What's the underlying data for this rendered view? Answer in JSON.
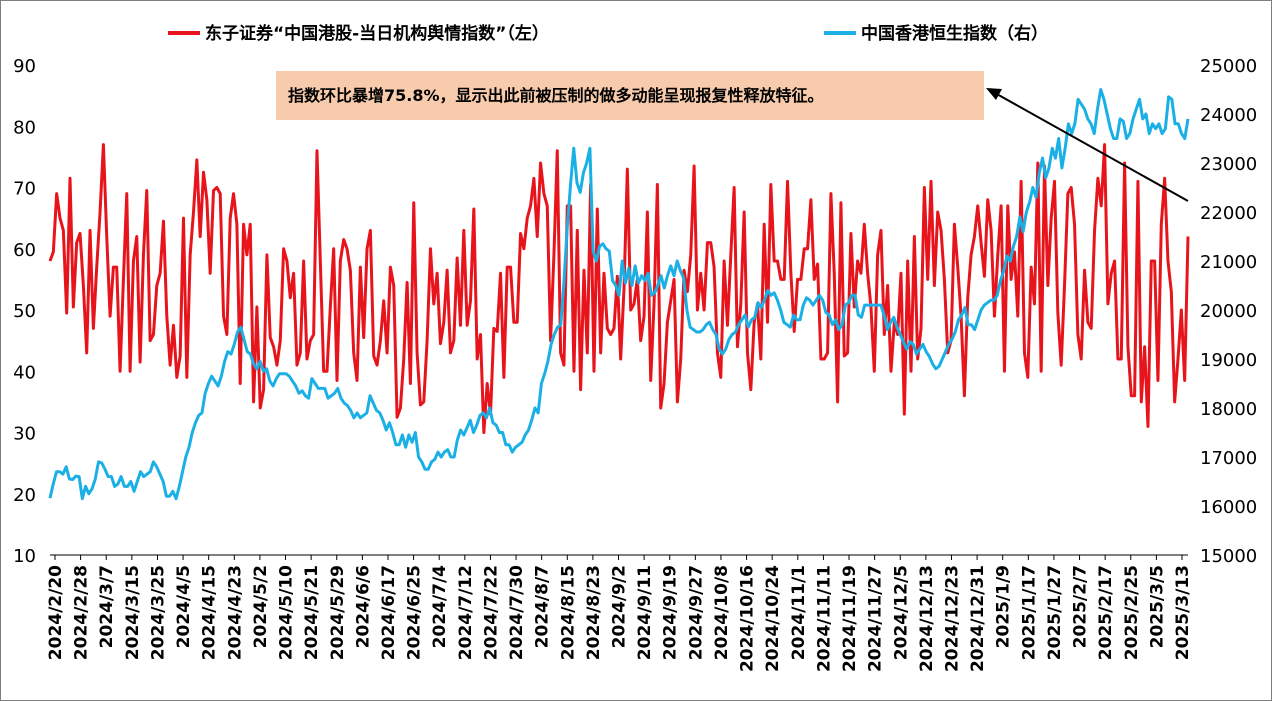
{
  "chart_data": {
    "type": "line",
    "legend": [
      {
        "name": "东子证券“中国港股-当日机构舆情指数”（左）",
        "color": "#e8141c"
      },
      {
        "name": "中国香港恒生指数（右）",
        "color": "#1ab0e6"
      }
    ],
    "legend_placement": "top-center",
    "left_axis": {
      "ylim": [
        10,
        90
      ],
      "ticks": [
        "10",
        "20",
        "30",
        "40",
        "50",
        "60",
        "70",
        "80",
        "90"
      ]
    },
    "right_axis": {
      "ylim": [
        15000,
        25000
      ],
      "ticks": [
        "15000",
        "16000",
        "17000",
        "18000",
        "19000",
        "20000",
        "21000",
        "22000",
        "23000",
        "24000",
        "25000"
      ]
    },
    "x_tick_labels": [
      "2024/2/20",
      "2024/2/28",
      "2024/3/7",
      "2024/3/15",
      "2024/3/25",
      "2024/4/5",
      "2024/4/15",
      "2024/4/23",
      "2024/5/2",
      "2024/5/10",
      "2024/5/21",
      "2024/5/29",
      "2024/6/6",
      "2024/6/17",
      "2024/6/25",
      "2024/7/4",
      "2024/7/12",
      "2024/7/22",
      "2024/7/30",
      "2024/8/7",
      "2024/8/15",
      "2024/8/23",
      "2024/9/2",
      "2024/9/11",
      "2024/9/19",
      "2024/9/27",
      "2024/10/8",
      "2024/10/16",
      "2024/10/24",
      "2024/11/1",
      "2024/11/11",
      "2024/11/19",
      "2024/11/27",
      "2024/12/5",
      "2024/12/13",
      "2024/12/23",
      "2024/12/31",
      "2025/1/9",
      "2025/1/17",
      "2025/1/27",
      "2025/2/7",
      "2025/2/17",
      "2025/2/25",
      "2025/3/5",
      "2025/3/13"
    ],
    "grid": false,
    "annotation": "指数环比暴增75.8%，显示出此前被压制的做多动能呈现报复性释放特征。",
    "annotation_bg": "#f8cbad",
    "series": [
      {
        "name": "东子证券“中国港股-当日机构舆情指数”（左）",
        "axis": "left",
        "color": "#e8141c",
        "values": [
          58,
          59.5,
          69,
          65,
          63,
          49.5,
          71.5,
          50.5,
          61,
          62.5,
          54,
          43,
          63,
          47,
          57,
          66,
          77,
          62,
          49,
          57,
          57,
          40,
          55,
          69,
          40,
          58,
          62,
          41.5,
          59,
          69.5,
          45,
          46,
          54,
          56,
          64.5,
          49,
          41,
          47.5,
          39,
          42.5,
          65,
          39,
          59,
          66,
          74.5,
          62,
          72.5,
          68,
          56,
          69.5,
          70,
          69,
          49,
          46,
          65,
          69,
          64,
          38,
          64,
          59,
          64,
          35,
          50.5,
          34,
          37,
          59,
          45.5,
          44,
          41,
          45,
          60,
          58,
          52,
          56,
          41,
          43,
          58,
          42,
          45,
          46,
          76,
          58,
          40,
          40,
          50.5,
          60,
          38.5,
          58,
          61.5,
          60,
          56.5,
          43,
          38.5,
          57,
          45.5,
          60,
          63,
          42.5,
          41,
          45,
          51.5,
          43,
          57,
          54,
          32.5,
          34,
          42,
          54.5,
          38,
          67.5,
          43,
          34.5,
          35,
          45,
          60,
          51,
          56,
          44.5,
          48,
          56.5,
          43,
          45,
          58.5,
          47.5,
          63,
          47.5,
          51.5,
          66.5,
          42,
          46,
          30,
          38,
          33,
          47,
          46.5,
          56,
          39,
          57,
          57,
          48,
          48,
          62.5,
          60,
          65,
          67,
          71.5,
          62,
          74,
          69,
          67,
          45,
          59,
          76,
          43,
          41,
          67,
          67,
          40,
          63,
          37,
          56.5,
          43,
          70.5,
          40,
          66.5,
          43,
          56,
          47,
          46,
          47,
          55.5,
          42,
          53.5,
          73,
          50,
          51,
          55,
          45,
          49,
          66,
          38.5,
          51,
          70.5,
          34,
          38,
          48,
          51.5,
          55,
          35,
          42,
          56.5,
          53,
          59,
          73.5,
          50,
          56,
          50,
          61,
          61,
          57,
          43,
          39,
          58,
          47.5,
          59,
          70,
          44,
          51,
          66,
          43,
          37,
          48,
          51,
          42,
          64,
          48,
          70.5,
          58,
          58,
          55,
          55,
          71,
          56,
          46.5,
          55,
          55,
          60,
          60,
          68,
          55,
          57.5,
          42,
          42,
          43,
          69,
          56,
          35,
          67.5,
          42.5,
          43,
          62.5,
          50.5,
          58,
          56,
          64,
          56,
          50.5,
          40,
          59,
          63,
          46,
          54,
          40,
          48,
          46,
          56,
          33,
          58,
          40,
          62,
          42,
          47,
          70,
          55,
          71,
          54,
          66,
          63,
          55,
          43,
          45,
          64,
          57,
          49,
          36,
          52,
          59,
          62,
          67,
          61,
          55.5,
          68,
          63,
          49,
          59,
          67,
          40,
          67,
          55,
          59.5,
          49,
          71,
          43,
          39,
          57,
          51,
          74,
          40,
          73.5,
          54,
          65,
          71,
          49.5,
          41,
          54,
          69,
          70,
          64,
          46,
          42,
          56.5,
          48,
          47,
          63,
          71.5,
          67,
          77,
          51,
          56,
          58,
          42,
          42,
          74,
          44,
          36,
          36,
          71,
          35,
          44,
          31,
          58,
          58,
          38.5,
          64,
          71.5,
          58,
          53,
          35,
          42,
          50,
          38.5,
          62
        ]
      },
      {
        "name": "中国香港恒生指数（右）",
        "axis": "right",
        "color": "#1ab0e6",
        "values": [
          16160,
          16450,
          16700,
          16700,
          16650,
          16800,
          16550,
          16540,
          16610,
          16600,
          16150,
          16400,
          16250,
          16350,
          16550,
          16900,
          16880,
          16750,
          16600,
          16600,
          16400,
          16450,
          16600,
          16400,
          16400,
          16500,
          16300,
          16500,
          16700,
          16600,
          16650,
          16700,
          16900,
          16800,
          16650,
          16500,
          16200,
          16200,
          16300,
          16150,
          16400,
          16700,
          17000,
          17200,
          17500,
          17700,
          17850,
          17900,
          18300,
          18500,
          18650,
          18550,
          18450,
          18650,
          18950,
          19150,
          19100,
          19300,
          19550,
          19650,
          19400,
          19150,
          19100,
          18900,
          18800,
          18950,
          18750,
          18800,
          18550,
          18450,
          18600,
          18700,
          18700,
          18700,
          18650,
          18550,
          18450,
          18300,
          18350,
          18250,
          18200,
          18600,
          18500,
          18400,
          18400,
          18400,
          18200,
          18250,
          18300,
          18400,
          18200,
          18100,
          18050,
          17950,
          17800,
          17900,
          17800,
          17850,
          17900,
          18250,
          18100,
          17950,
          17900,
          17750,
          17550,
          17700,
          17500,
          17250,
          17250,
          17450,
          17200,
          17450,
          17300,
          17500,
          17000,
          16900,
          16750,
          16750,
          16900,
          16950,
          17100,
          17000,
          17100,
          17150,
          17000,
          17000,
          17350,
          17550,
          17450,
          17600,
          17750,
          17500,
          17650,
          17850,
          17900,
          17800,
          18000,
          17700,
          17650,
          17500,
          17500,
          17250,
          17250,
          17100,
          17200,
          17250,
          17300,
          17450,
          17550,
          17750,
          18000,
          17900,
          18500,
          18700,
          18950,
          19300,
          19500,
          19650,
          19700,
          20600,
          21700,
          22550,
          23300,
          22600,
          22400,
          22800,
          23000,
          23300,
          21200,
          21000,
          21300,
          21350,
          21250,
          21200,
          20600,
          20500,
          20300,
          21000,
          20550,
          20850,
          20500,
          20900,
          20550,
          20700,
          20600,
          20750,
          20300,
          20350,
          20500,
          20700,
          20450,
          20700,
          20900,
          20700,
          21000,
          20800,
          20650,
          20000,
          19650,
          19600,
          19550,
          19550,
          19600,
          19700,
          19750,
          19600,
          19500,
          19200,
          19100,
          19200,
          19400,
          19500,
          19550,
          19700,
          19800,
          19900,
          19650,
          19800,
          19850,
          20150,
          20050,
          20200,
          20400,
          20300,
          20350,
          20200,
          20000,
          19750,
          19700,
          19650,
          19900,
          19800,
          19800,
          20100,
          20250,
          20200,
          20100,
          20200,
          20300,
          20200,
          19950,
          19900,
          19700,
          19800,
          19600,
          19700,
          20100,
          20150,
          20300,
          20300,
          19900,
          19850,
          20100,
          20100,
          20100,
          20100,
          20100,
          20100,
          19900,
          19600,
          19750,
          19850,
          19650,
          19500,
          19350,
          19200,
          19350,
          19300,
          19100,
          19200,
          19300,
          19150,
          19050,
          18900,
          18800,
          18850,
          19000,
          19150,
          19300,
          19400,
          19550,
          19800,
          19900,
          20050,
          19700,
          19700,
          19600,
          19800,
          20000,
          20100,
          20150,
          20200,
          20200,
          20300,
          20600,
          20800,
          21100,
          21000,
          21300,
          21500,
          21900,
          21600,
          22000,
          22200,
          22500,
          22300,
          22800,
          23100,
          22700,
          22900,
          23300,
          23100,
          23500,
          22900,
          23300,
          23800,
          23600,
          23800,
          24300,
          24200,
          24100,
          23900,
          23800,
          23600,
          24100,
          24500,
          24300,
          24000,
          23700,
          23500,
          23500,
          23900,
          23850,
          23500,
          23600,
          23900,
          24100,
          24300,
          23900,
          24000,
          23600,
          23800,
          23700,
          23800,
          23600,
          23700,
          24350,
          24300,
          23800,
          23800,
          23600,
          23500,
          23900
        ],
        "note_end_value": 23900
      }
    ]
  }
}
